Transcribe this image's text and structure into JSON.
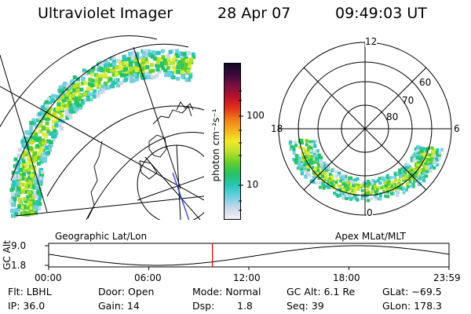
{
  "header": {
    "instrument": "Ultraviolet Imager",
    "date": "28 Apr 07",
    "time": "09:49:03 UT"
  },
  "colorbar": {
    "unit_label": "photon cm⁻²s⁻¹",
    "ticks": [
      "100",
      "10"
    ],
    "colors": [
      "#f2f2f2",
      "#c9d8ea",
      "#6fd0e0",
      "#2cc6b8",
      "#22c36a",
      "#5ccd2c",
      "#b5e02c",
      "#f2ea28",
      "#f4b21e",
      "#f07a18",
      "#e2301c",
      "#b8102a",
      "#7a1040",
      "#3a0a3a",
      "#120a22"
    ]
  },
  "geo_map": {
    "caption": "Geographic Lat/Lon"
  },
  "polar_plot": {
    "caption": "Apex MLat/MLT",
    "mlt_labels": {
      "top": "12",
      "left": "18",
      "right": "6",
      "bottom": "0"
    },
    "lat_labels": [
      "60",
      "70",
      "80"
    ]
  },
  "altitude_plot": {
    "ylabel": "GC Alt",
    "yticks": [
      "9.0",
      "1.8"
    ],
    "xticks": [
      "00:00",
      "06:00",
      "12:00",
      "18:00",
      "23:59"
    ],
    "marker_color": "#e00000"
  },
  "status": {
    "filter": "Flt: LBHL",
    "ip": "IP: 36.0",
    "door": "Door: Open",
    "gain": "Gain: 14",
    "mode": "Mode: Normal",
    "dsp_label": "Dsp:",
    "dsp_value": "1.8",
    "gc_alt": "GC Alt: 6.1 Re",
    "seq": "Seq: 39",
    "glat": "GLat: −69.5",
    "glon": "GLon: 178.3"
  }
}
